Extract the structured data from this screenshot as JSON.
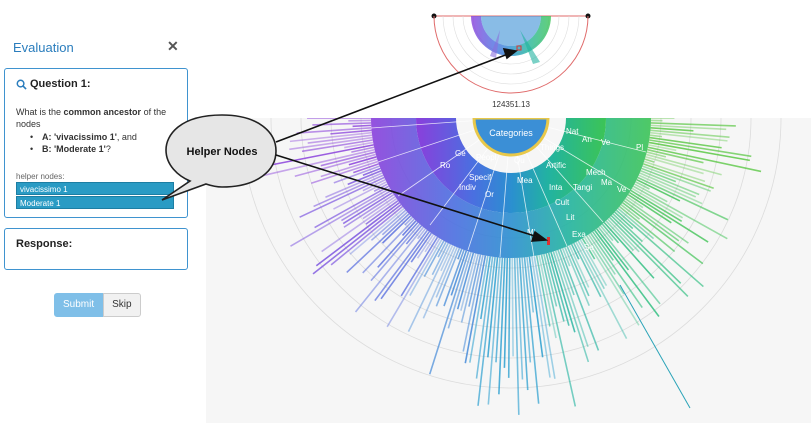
{
  "panel": {
    "title": "Evaluation",
    "close": "✕"
  },
  "question": {
    "heading": "Question 1:",
    "text_prefix": "What is the ",
    "text_bold": "common ancestor",
    "text_suffix": " of the nodes",
    "a_label": "A:",
    "a_value": "'vivacissimo 1'",
    "a_tail": ", and",
    "b_label": "B:",
    "b_value": "'Moderate 1'",
    "b_tail": "?",
    "helper_label": "helper nodes:",
    "helpers": [
      "vivacissimo 1",
      "Moderate 1"
    ]
  },
  "response": {
    "heading": "Response:"
  },
  "buttons": {
    "submit": "Submit",
    "skip": "Skip"
  },
  "callout": {
    "text": "Helper Nodes"
  },
  "mini_view": {
    "value_label": "124351.13"
  },
  "sunburst": {
    "center_label": "Categories",
    "segment_labels": [
      "Peopl",
      "Qu",
      "Things",
      "Nat",
      "Ge",
      "Specif",
      "Mea",
      "Artific",
      "An",
      "Ve",
      "Ro",
      "Indiv",
      "Or",
      "Inta",
      "Tangi",
      "Mech",
      "Pl",
      "Ma",
      "Cult",
      "Ve",
      "Lit",
      "Exa",
      "Sa",
      "Mi"
    ],
    "accent_colors": [
      "#7b3fd6",
      "#3d7fd1",
      "#2aa3b8",
      "#34c07a",
      "#55c544",
      "#e8c84a"
    ]
  }
}
